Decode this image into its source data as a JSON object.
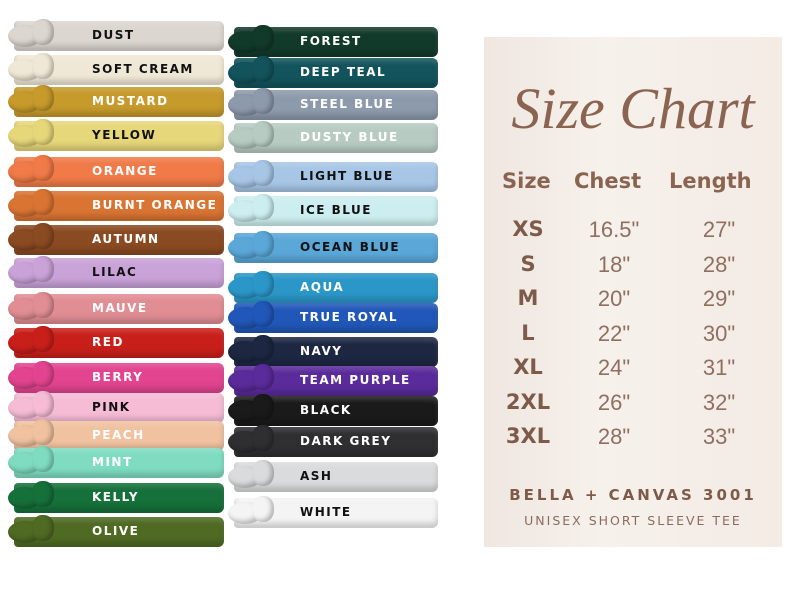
{
  "colors_left": [
    {
      "name": "DUST",
      "color": "#dcd6d0",
      "text": "#111"
    },
    {
      "name": "SOFT CREAM",
      "color": "#efe8d6",
      "text": "#111"
    },
    {
      "name": "MUSTARD",
      "color": "#c69a2b",
      "text": "#fff"
    },
    {
      "name": "YELLOW",
      "color": "#e6d77a",
      "text": "#111"
    },
    {
      "name": "ORANGE",
      "color": "#f07a48",
      "text": "#fff"
    },
    {
      "name": "BURNT ORANGE",
      "color": "#d97433",
      "text": "#fff"
    },
    {
      "name": "AUTUMN",
      "color": "#8a4a22",
      "text": "#fff"
    },
    {
      "name": "LILAC",
      "color": "#c9a2d8",
      "text": "#111"
    },
    {
      "name": "MAUVE",
      "color": "#e08d93",
      "text": "#fff"
    },
    {
      "name": "RED",
      "color": "#c91f1a",
      "text": "#fff"
    },
    {
      "name": "BERRY",
      "color": "#e2448f",
      "text": "#fff"
    },
    {
      "name": "PINK",
      "color": "#f6bcd6",
      "text": "#111"
    },
    {
      "name": "PEACH",
      "color": "#f0c2a0",
      "text": "#fff"
    },
    {
      "name": "MINT",
      "color": "#7fdcc0",
      "text": "#fff"
    },
    {
      "name": "KELLY",
      "color": "#16703a",
      "text": "#fff"
    },
    {
      "name": "OLIVE",
      "color": "#4f6a23",
      "text": "#fff"
    }
  ],
  "colors_right": [
    {
      "name": "FOREST",
      "color": "#123a2b",
      "text": "#fff"
    },
    {
      "name": "DEEP TEAL",
      "color": "#13535c",
      "text": "#fff"
    },
    {
      "name": "STEEL BLUE",
      "color": "#8c9aac",
      "text": "#fff"
    },
    {
      "name": "DUSTY BLUE",
      "color": "#b7cbc3",
      "text": "#fff"
    },
    {
      "name": "LIGHT BLUE",
      "color": "#a7c6e6",
      "text": "#111"
    },
    {
      "name": "ICE BLUE",
      "color": "#cdeef0",
      "text": "#111"
    },
    {
      "name": "OCEAN BLUE",
      "color": "#5aa7d8",
      "text": "#111"
    },
    {
      "name": "AQUA",
      "color": "#2b97c8",
      "text": "#fff"
    },
    {
      "name": "TRUE ROYAL",
      "color": "#2157b8",
      "text": "#fff"
    },
    {
      "name": "NAVY",
      "color": "#1d2742",
      "text": "#fff"
    },
    {
      "name": "TEAM PURPLE",
      "color": "#5a2b9a",
      "text": "#fff"
    },
    {
      "name": "BLACK",
      "color": "#1a1a1a",
      "text": "#fff"
    },
    {
      "name": "DARK GREY",
      "color": "#2f2f31",
      "text": "#fff"
    },
    {
      "name": "ASH",
      "color": "#dadbdc",
      "text": "#111"
    },
    {
      "name": "WHITE",
      "color": "#f4f4f4",
      "text": "#111"
    }
  ],
  "size_chart": {
    "title": "Size Chart",
    "headers": [
      "Size",
      "Chest",
      "Length"
    ],
    "rows": [
      [
        "XS",
        "16.5\"",
        "27\""
      ],
      [
        "S",
        "18\"",
        "28\""
      ],
      [
        "M",
        "20\"",
        "29\""
      ],
      [
        "L",
        "22\"",
        "30\""
      ],
      [
        "XL",
        "24\"",
        "31\""
      ],
      [
        "2XL",
        "26\"",
        "32\""
      ],
      [
        "3XL",
        "28\"",
        "33\""
      ]
    ],
    "brand": "BELLA + CANVAS 3001",
    "subtitle": "UNISEX SHORT SLEEVE TEE"
  }
}
